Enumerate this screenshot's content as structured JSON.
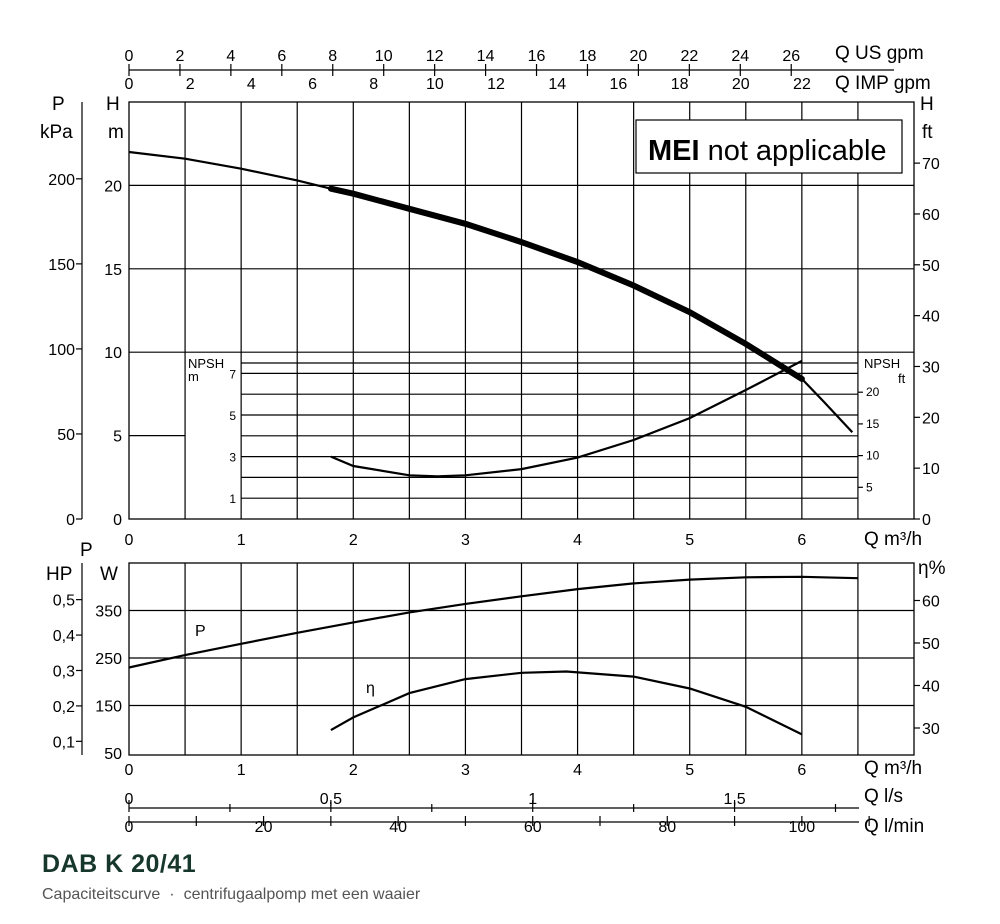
{
  "product_title": "DAB K 20/41",
  "subtitle_left": "Capaciteitscurve",
  "subtitle_sep": "·",
  "subtitle_right": "centrifugaalpomp met een waaier",
  "mei_note": {
    "bold": "MEI",
    "rest": "not applicable"
  },
  "units": {
    "q_us": "Q US gpm",
    "q_imp": "Q IMP gpm",
    "q_m3h_top": "Q m³/h",
    "q_m3h_bottom": "Q m³/h",
    "q_ls": "Q l/s",
    "q_lmin": "Q l/min",
    "p_letter": "P",
    "p_kpa": "kPa",
    "h_letter": "H",
    "h_m": "m",
    "h_right": "H",
    "ft": "ft",
    "npsh_m_top": "NPSH",
    "npsh_m_bottom": "m",
    "npsh_ft_top": "NPSH",
    "npsh_ft_bottom": "ft",
    "hp": "HP",
    "power_p": "P",
    "watt": "W",
    "eta_pct": "η%",
    "curve_p": "P",
    "curve_eta": "η"
  },
  "chart_data": [
    {
      "type": "line",
      "name": "head",
      "x_unit": "Q m3/h",
      "xlim": [
        0,
        7
      ],
      "x_ticks": [
        "0",
        "1",
        "2",
        "3",
        "4",
        "5",
        "6"
      ],
      "ylim_m": [
        0,
        25
      ],
      "y_ticks_m": [
        "0",
        "5",
        "10",
        "15",
        "20"
      ],
      "y_ticks_kpa": [
        "0",
        "50",
        "100",
        "150",
        "200"
      ],
      "y_ticks_ft": [
        "0",
        "10",
        "20",
        "30",
        "40",
        "50",
        "60",
        "70"
      ],
      "top_us_gpm_ticks": [
        "0",
        "2",
        "4",
        "6",
        "8",
        "10",
        "12",
        "14",
        "16",
        "18",
        "20",
        "22",
        "24",
        "26"
      ],
      "top_imp_gpm_ticks": [
        "0",
        "2",
        "4",
        "6",
        "8",
        "10",
        "12",
        "14",
        "16",
        "18",
        "20",
        "22"
      ],
      "series": [
        {
          "x": [
            0,
            0.5,
            1.0,
            1.5,
            1.8,
            2.0,
            2.5,
            3.0,
            3.5,
            4.0,
            4.5,
            5.0,
            5.5,
            6.0,
            6.2,
            6.45
          ],
          "y": [
            22.0,
            21.6,
            21.0,
            20.3,
            19.8,
            19.5,
            18.6,
            17.7,
            16.6,
            15.4,
            14.0,
            12.4,
            10.5,
            8.4,
            7.0,
            5.2
          ]
        }
      ],
      "bold_segment_x": [
        1.8,
        6.0
      ]
    },
    {
      "type": "line",
      "name": "npsh",
      "ylim_m": [
        0,
        8
      ],
      "y_ticks_m": [
        "1",
        "3",
        "5",
        "7"
      ],
      "y_ticks_ft": [
        "5",
        "10",
        "15",
        "20"
      ],
      "series": [
        {
          "x": [
            1.8,
            2.0,
            2.5,
            2.75,
            3.0,
            3.5,
            4.0,
            4.5,
            5.0,
            5.5,
            6.0
          ],
          "y": [
            3.0,
            2.55,
            2.1,
            2.05,
            2.1,
            2.4,
            2.95,
            3.8,
            4.85,
            6.2,
            7.6
          ]
        }
      ]
    },
    {
      "type": "line",
      "name": "power_efficiency",
      "x_ticks": [
        "0",
        "1",
        "2",
        "3",
        "4",
        "5",
        "6"
      ],
      "y_ticks_w": [
        "50",
        "150",
        "250",
        "350"
      ],
      "y_ticks_hp": [
        "0,1",
        "0,2",
        "0,3",
        "0,4",
        "0,5"
      ],
      "y_ticks_eta": [
        "30",
        "40",
        "50",
        "60"
      ],
      "ls_ticks": [
        "0",
        "0,5",
        "1",
        "1,5"
      ],
      "lmin_ticks": [
        "0",
        "20",
        "40",
        "60",
        "80",
        "100"
      ],
      "series": [
        {
          "x": [
            0,
            0.5,
            1.0,
            1.5,
            2.0,
            2.5,
            3.0,
            3.5,
            4.0,
            4.5,
            5.0,
            5.5,
            6.0,
            6.5
          ],
          "y": [
            230,
            256,
            280,
            303,
            325,
            346,
            364,
            380,
            395,
            407,
            415,
            420,
            421,
            418
          ]
        },
        {
          "x": [
            1.8,
            2.0,
            2.5,
            3.0,
            3.5,
            3.9,
            4.5,
            5.0,
            5.5,
            6.0
          ],
          "y": [
            29.5,
            32.5,
            38.2,
            41.5,
            43.0,
            43.3,
            42.1,
            39.3,
            35.0,
            28.5
          ]
        }
      ]
    }
  ]
}
